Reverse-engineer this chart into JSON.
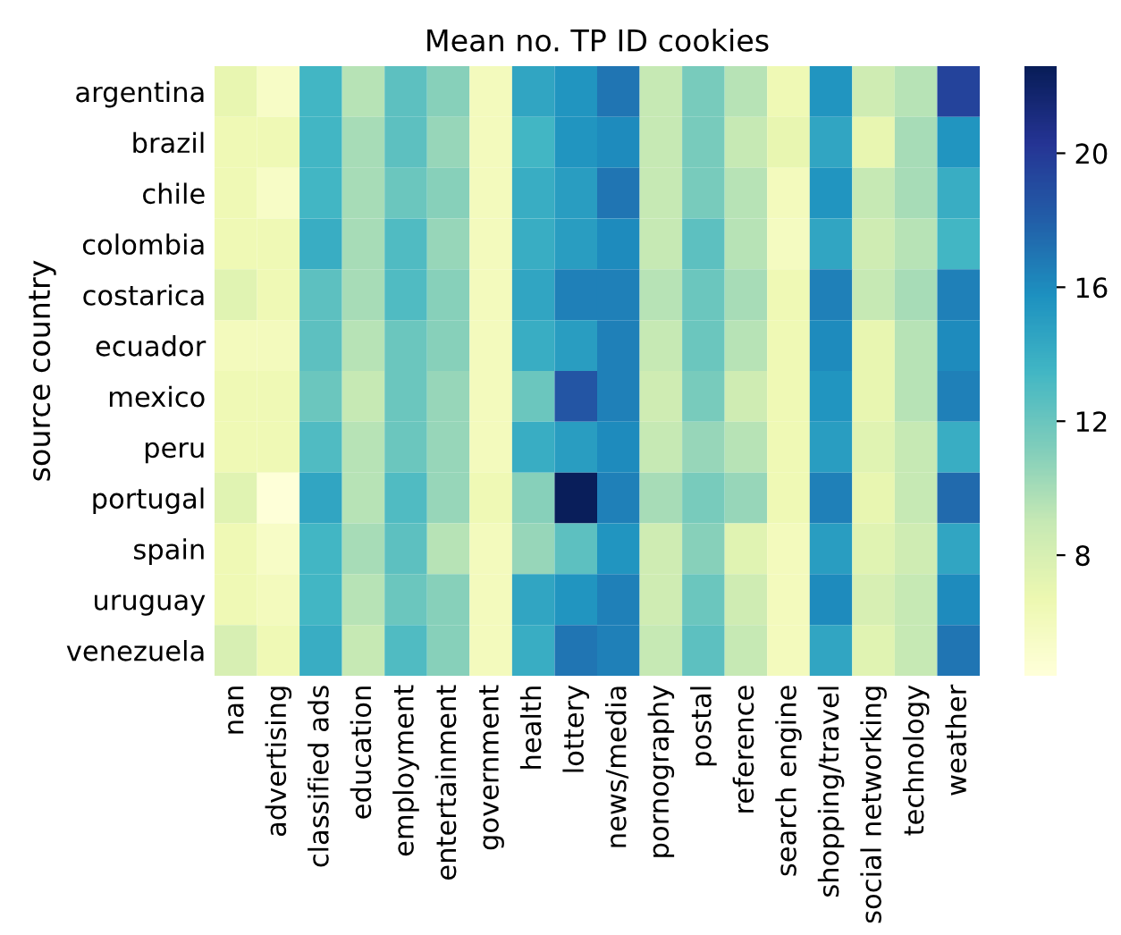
{
  "chart_data": {
    "type": "heatmap",
    "title": "Mean no. TP ID cookies",
    "ylabel": "source country",
    "categories": [
      "nan",
      "advertising",
      "classified ads",
      "education",
      "employment",
      "entertainment",
      "government",
      "health",
      "lottery",
      "news/media",
      "pornography",
      "postal",
      "reference",
      "search engine",
      "shopping/travel",
      "social networking",
      "technology",
      "weather"
    ],
    "y_categories": [
      "argentina",
      "brazil",
      "chile",
      "colombia",
      "costarica",
      "ecuador",
      "mexico",
      "peru",
      "portugal",
      "spain",
      "uruguay",
      "venezuela"
    ],
    "cells": [
      [
        7,
        5.5,
        13.5,
        9.5,
        12.5,
        11,
        6,
        14.5,
        15.5,
        17,
        9,
        11.5,
        9.5,
        6.5,
        15.5,
        8.5,
        9.5,
        19.5
      ],
      [
        6.5,
        6.5,
        13.5,
        10,
        12.5,
        10.5,
        6,
        13.5,
        15.5,
        16,
        9,
        11.5,
        9,
        7,
        14.5,
        7,
        10,
        15.5
      ],
      [
        6.5,
        5.5,
        13.5,
        10,
        12,
        11,
        6,
        14,
        15,
        17,
        9,
        11.5,
        9.5,
        6,
        15.5,
        9,
        10,
        14
      ],
      [
        6.5,
        6.5,
        14,
        10,
        13,
        10.5,
        6,
        14,
        15,
        16,
        9,
        12.5,
        9.5,
        5.8,
        14.5,
        8.5,
        9.5,
        13.5
      ],
      [
        7.5,
        6.5,
        12.5,
        10,
        13,
        11,
        6,
        14.5,
        16.5,
        16.5,
        9.5,
        12,
        10,
        6.5,
        16.5,
        9,
        10,
        16.5
      ],
      [
        6,
        6,
        12.5,
        9.5,
        12,
        11,
        6,
        14,
        15,
        16.5,
        9,
        12,
        9.5,
        6.5,
        16,
        7,
        9.5,
        16
      ],
      [
        6.5,
        6.5,
        12,
        9,
        12,
        10.5,
        6,
        12,
        18.5,
        16.5,
        8.5,
        11.5,
        8.5,
        6.5,
        15.5,
        7,
        9.5,
        16.5
      ],
      [
        6.5,
        6.5,
        13,
        9.5,
        12,
        10.5,
        6,
        14,
        15,
        16,
        9,
        10.5,
        9.5,
        6.5,
        15,
        7.5,
        9,
        14
      ],
      [
        7.5,
        4.5,
        14.5,
        9.5,
        13,
        10.5,
        6.5,
        11,
        22.5,
        16.5,
        10,
        11.5,
        10.5,
        6.5,
        16.5,
        7,
        9,
        17.5
      ],
      [
        6.5,
        5.5,
        13.5,
        10,
        12.5,
        9.5,
        6,
        10.5,
        12.5,
        15.5,
        8.5,
        11,
        7.5,
        6,
        15,
        7.5,
        8.5,
        14.5
      ],
      [
        6.5,
        6,
        13.5,
        9.5,
        12,
        11,
        6,
        14.5,
        15.5,
        16.5,
        8.5,
        12,
        8.5,
        6,
        16,
        8,
        9,
        16
      ],
      [
        8,
        6.5,
        14,
        9,
        13,
        11,
        6,
        14,
        17,
        16.5,
        9,
        12.5,
        9,
        6,
        14.5,
        7.5,
        9,
        17
      ]
    ],
    "clim": [
      4.4,
      22.6
    ],
    "cticks": [
      8,
      12,
      16,
      20
    ]
  }
}
